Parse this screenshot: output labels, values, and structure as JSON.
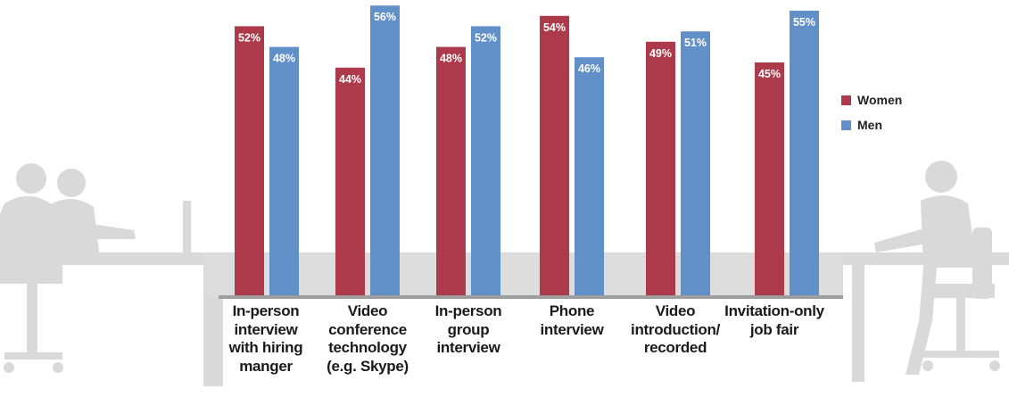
{
  "chart_data": {
    "type": "bar",
    "categories": [
      "In-person\ninterview\nwith hiring\nmanger",
      "Video\nconference\ntechnology\n(e.g. Skype)",
      "In-person\ngroup\ninterview",
      "Phone\ninterview",
      "Video\nintroduction/\nrecorded",
      "Invitation-only\njob fair"
    ],
    "series": [
      {
        "name": "Women",
        "values": [
          52,
          44,
          48,
          54,
          49,
          45
        ],
        "labels": [
          "52%",
          "44%",
          "48%",
          "54%",
          "49%",
          "45%"
        ],
        "color": "#ac3a4a"
      },
      {
        "name": "Men",
        "values": [
          48,
          56,
          52,
          46,
          51,
          55
        ],
        "labels": [
          "48%",
          "56%",
          "52%",
          "46%",
          "51%",
          "55%"
        ],
        "color": "#6190c9"
      }
    ],
    "ylim": [
      0,
      56
    ],
    "grid": false,
    "legend_position": "right",
    "value_unit": "%"
  },
  "legend": {
    "women": "Women",
    "men": "Men"
  },
  "colors": {
    "women": "#ac3a4a",
    "men": "#6190c9",
    "silhouette": "#d9d9d9",
    "baseline": "#9e9e9e"
  }
}
